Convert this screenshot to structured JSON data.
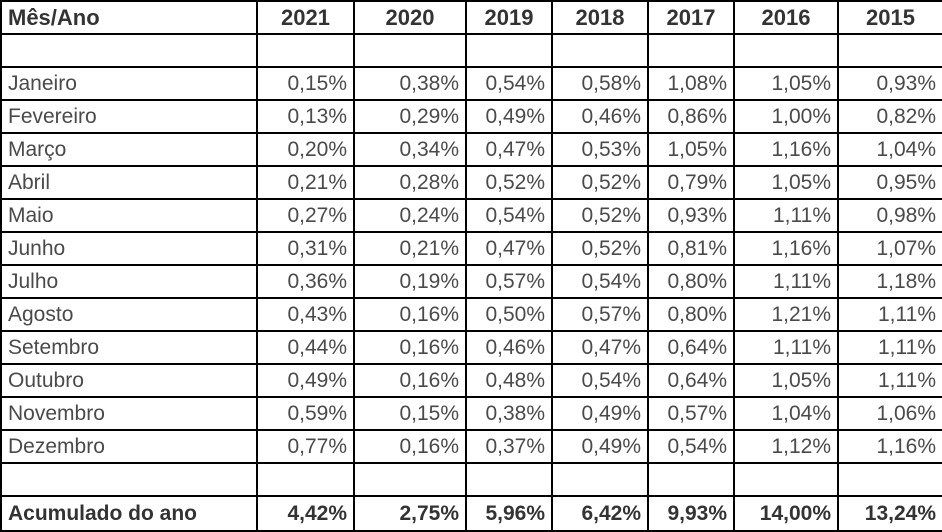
{
  "table": {
    "corner_label": "Mês/Ano",
    "years": [
      "2021",
      "2020",
      "2019",
      "2018",
      "2017",
      "2016",
      "2015"
    ],
    "rows": [
      {
        "month": "Janeiro",
        "values": [
          "0,15%",
          "0,38%",
          "0,54%",
          "0,58%",
          "1,08%",
          "1,05%",
          "0,93%"
        ]
      },
      {
        "month": "Fevereiro",
        "values": [
          "0,13%",
          "0,29%",
          "0,49%",
          "0,46%",
          "0,86%",
          "1,00%",
          "0,82%"
        ]
      },
      {
        "month": "Março",
        "values": [
          "0,20%",
          "0,34%",
          "0,47%",
          "0,53%",
          "1,05%",
          "1,16%",
          "1,04%"
        ]
      },
      {
        "month": "Abril",
        "values": [
          "0,21%",
          "0,28%",
          "0,52%",
          "0,52%",
          "0,79%",
          "1,05%",
          "0,95%"
        ]
      },
      {
        "month": "Maio",
        "values": [
          "0,27%",
          "0,24%",
          "0,54%",
          "0,52%",
          "0,93%",
          "1,11%",
          "0,98%"
        ]
      },
      {
        "month": "Junho",
        "values": [
          "0,31%",
          "0,21%",
          "0,47%",
          "0,52%",
          "0,81%",
          "1,16%",
          "1,07%"
        ]
      },
      {
        "month": "Julho",
        "values": [
          "0,36%",
          "0,19%",
          "0,57%",
          "0,54%",
          "0,80%",
          "1,11%",
          "1,18%"
        ]
      },
      {
        "month": "Agosto",
        "values": [
          "0,43%",
          "0,16%",
          "0,50%",
          "0,57%",
          "0,80%",
          "1,21%",
          "1,11%"
        ]
      },
      {
        "month": "Setembro",
        "values": [
          "0,44%",
          "0,16%",
          "0,46%",
          "0,47%",
          "0,64%",
          "1,11%",
          "1,11%"
        ]
      },
      {
        "month": "Outubro",
        "values": [
          "0,49%",
          "0,16%",
          "0,48%",
          "0,54%",
          "0,64%",
          "1,05%",
          "1,11%"
        ]
      },
      {
        "month": "Novembro",
        "values": [
          "0,59%",
          "0,15%",
          "0,38%",
          "0,49%",
          "0,57%",
          "1,04%",
          "1,06%"
        ]
      },
      {
        "month": "Dezembro",
        "values": [
          "0,77%",
          "0,16%",
          "0,37%",
          "0,49%",
          "0,54%",
          "1,12%",
          "1,16%"
        ]
      }
    ],
    "footer": {
      "label": "Acumulado do ano",
      "values": [
        "4,42%",
        "2,75%",
        "5,96%",
        "6,42%",
        "9,93%",
        "14,00%",
        "13,24%"
      ]
    }
  },
  "colors": {
    "border": "#000000",
    "text": "#4a4a4a",
    "bold_text": "#333333",
    "background": "#ffffff"
  },
  "chart_data": {
    "type": "table",
    "columns": [
      "Mês/Ano",
      "2021",
      "2020",
      "2019",
      "2018",
      "2017",
      "2016",
      "2015"
    ],
    "rows": [
      [
        "Janeiro",
        "0,15%",
        "0,38%",
        "0,54%",
        "0,58%",
        "1,08%",
        "1,05%",
        "0,93%"
      ],
      [
        "Fevereiro",
        "0,13%",
        "0,29%",
        "0,49%",
        "0,46%",
        "0,86%",
        "1,00%",
        "0,82%"
      ],
      [
        "Março",
        "0,20%",
        "0,34%",
        "0,47%",
        "0,53%",
        "1,05%",
        "1,16%",
        "1,04%"
      ],
      [
        "Abril",
        "0,21%",
        "0,28%",
        "0,52%",
        "0,52%",
        "0,79%",
        "1,05%",
        "0,95%"
      ],
      [
        "Maio",
        "0,27%",
        "0,24%",
        "0,54%",
        "0,52%",
        "0,93%",
        "1,11%",
        "0,98%"
      ],
      [
        "Junho",
        "0,31%",
        "0,21%",
        "0,47%",
        "0,52%",
        "0,81%",
        "1,16%",
        "1,07%"
      ],
      [
        "Julho",
        "0,36%",
        "0,19%",
        "0,57%",
        "0,54%",
        "0,80%",
        "1,11%",
        "1,18%"
      ],
      [
        "Agosto",
        "0,43%",
        "0,16%",
        "0,50%",
        "0,57%",
        "0,80%",
        "1,21%",
        "1,11%"
      ],
      [
        "Setembro",
        "0,44%",
        "0,16%",
        "0,46%",
        "0,47%",
        "0,64%",
        "1,11%",
        "1,11%"
      ],
      [
        "Outubro",
        "0,49%",
        "0,16%",
        "0,48%",
        "0,54%",
        "0,64%",
        "1,05%",
        "1,11%"
      ],
      [
        "Novembro",
        "0,59%",
        "0,15%",
        "0,38%",
        "0,49%",
        "0,57%",
        "1,04%",
        "1,06%"
      ],
      [
        "Dezembro",
        "0,77%",
        "0,16%",
        "0,37%",
        "0,49%",
        "0,54%",
        "1,12%",
        "1,16%"
      ],
      [
        "Acumulado do ano",
        "4,42%",
        "2,75%",
        "5,96%",
        "6,42%",
        "9,93%",
        "14,00%",
        "13,24%"
      ]
    ]
  }
}
